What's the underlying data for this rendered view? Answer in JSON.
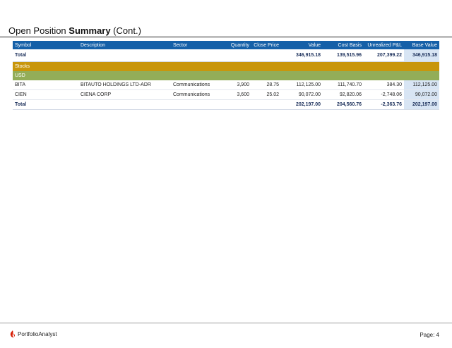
{
  "header": {
    "title_prefix": "Open Position",
    "title_bold": "Summary",
    "title_suffix": "(Cont.)"
  },
  "table": {
    "columns": [
      "Symbol",
      "Description",
      "Sector",
      "Quantity",
      "Close Price",
      "Value",
      "Cost Basis",
      "Unrealized P&L",
      "Base Value"
    ],
    "top_total": {
      "label": "Total",
      "value": "346,915.18",
      "cost_basis": "139,515.96",
      "unrealized_pl": "207,399.22",
      "base_value": "346,915.18"
    },
    "section": "Stocks",
    "currency": "USD",
    "rows": [
      {
        "symbol": "BITA",
        "description": "BITAUTO HOLDINGS LTD-ADR",
        "sector": "Communications",
        "quantity": "3,900",
        "close_price": "28.75",
        "value": "112,125.00",
        "cost_basis": "111,740.70",
        "unrealized_pl": "384.30",
        "base_value": "112,125.00"
      },
      {
        "symbol": "CIEN",
        "description": "CIENA CORP",
        "sector": "Communications",
        "quantity": "3,600",
        "close_price": "25.02",
        "value": "90,072.00",
        "cost_basis": "92,820.06",
        "unrealized_pl": "-2,748.06",
        "base_value": "90,072.00"
      }
    ],
    "section_total": {
      "label": "Total",
      "value": "202,197.00",
      "cost_basis": "204,560.76",
      "unrealized_pl": "-2,363.76",
      "base_value": "202,197.00"
    }
  },
  "footer": {
    "brand": "PortfolioAnalyst",
    "brand_icon": "flame-logo-icon",
    "brand_color": "#d81e05",
    "page_label": "Page: 4"
  }
}
